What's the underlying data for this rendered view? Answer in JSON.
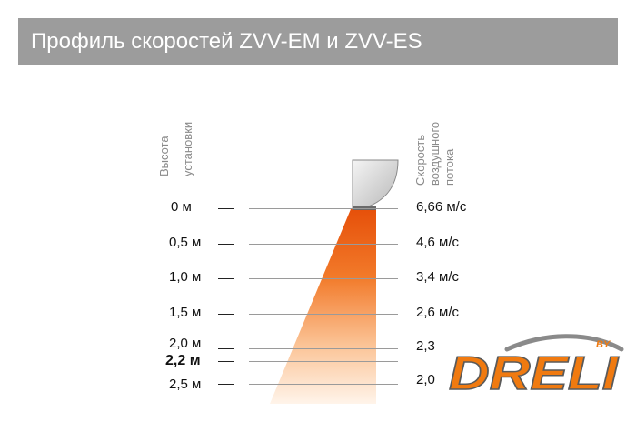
{
  "title": "Профиль скоростей ZVV-EM и ZVV-ES",
  "height_axis_label": [
    "Высота",
    "установки"
  ],
  "speed_axis_label": [
    "Скорость",
    "воздушного",
    "потока"
  ],
  "rows": [
    {
      "height": "0 м",
      "speed": "6,66 м/с",
      "bold": false
    },
    {
      "height": "0,5 м",
      "speed": "4,6 м/с",
      "bold": false
    },
    {
      "height": "1,0 м",
      "speed": "3,4 м/с",
      "bold": false
    },
    {
      "height": "1,5 м",
      "speed": "2,6 м/с",
      "bold": false
    },
    {
      "height": "2,0 м",
      "speed": "2,3",
      "bold": false
    },
    {
      "height": "2,2 м",
      "speed": "",
      "bold": true
    },
    {
      "height": "2,5 м",
      "speed": "2,0",
      "bold": false
    }
  ],
  "logo": {
    "text": "DRELI",
    "superscript": "BY"
  },
  "colors": {
    "title_bg": "#9c9c9c",
    "plume_top": "#e8540a",
    "plume_bottom": "#fff3e6",
    "logo_orange": "#f07a10"
  }
}
